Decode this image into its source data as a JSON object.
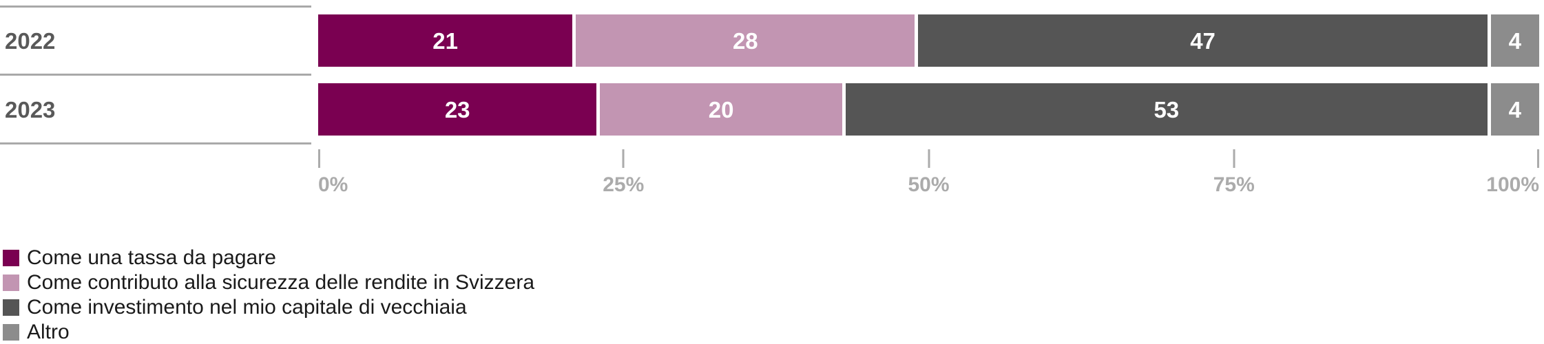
{
  "chart_data": {
    "type": "bar",
    "subtype": "horizontal-stacked",
    "categories": [
      "2022",
      "2023"
    ],
    "series": [
      {
        "name": "Come una tassa da pagare",
        "color": "#7a0051",
        "values": [
          21,
          23
        ]
      },
      {
        "name": "Come contributo alla sicurezza delle rendite in Svizzera",
        "color": "#c295b2",
        "values": [
          28,
          20
        ]
      },
      {
        "name": "Come investimento nel mio capitale di vecchiaia",
        "color": "#555555",
        "values": [
          47,
          53
        ]
      },
      {
        "name": "Altro",
        "color": "#8c8c8c",
        "values": [
          4,
          4
        ]
      }
    ],
    "x_axis": {
      "range": [
        0,
        100
      ],
      "tick_labels": [
        "0%",
        "25%",
        "50%",
        "75%",
        "100%"
      ],
      "grid": false
    },
    "legend_position": "bottom-left",
    "value_labels": "inside-white-bold",
    "colors": {
      "separator_line": "#a9a9a9",
      "axis_text": "#ababab",
      "row_label_text": "#595959",
      "legend_text": "#1a1a1a",
      "background": "#ffffff"
    }
  }
}
